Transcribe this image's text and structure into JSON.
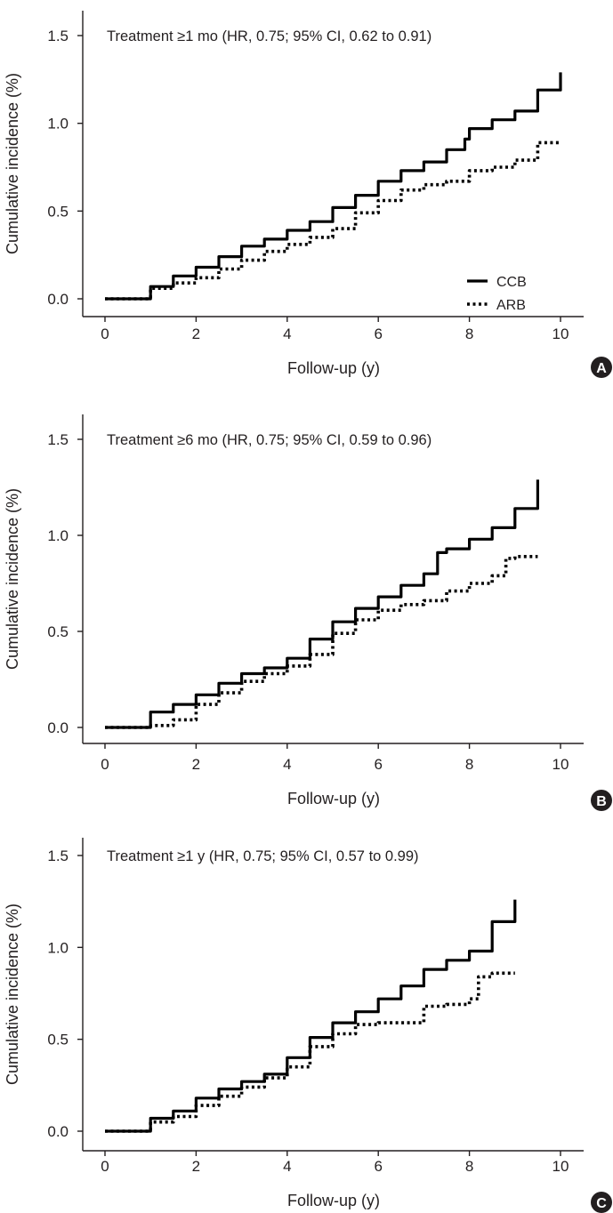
{
  "chart_data": [
    {
      "type": "line",
      "panel_label": "A",
      "annotation": "Treatment ≥1 mo (HR, 0.75; 95% CI, 0.62 to 0.91)",
      "xlabel": "Follow-up (y)",
      "ylabel": "Cumulative incidence (%)",
      "xlim": [
        0,
        10
      ],
      "ylim": [
        0,
        1.5
      ],
      "x_ticks": [
        "0",
        "2",
        "4",
        "6",
        "8",
        "10"
      ],
      "y_ticks": [
        "0.0",
        "0.5",
        "1.0",
        "1.5"
      ],
      "grid": false,
      "legend": {
        "position": "right",
        "entries": [
          "CCB",
          "ARB"
        ]
      },
      "series": [
        {
          "name": "CCB",
          "style": "solid",
          "x": [
            0,
            0.55,
            1.0,
            1.5,
            2.0,
            2.5,
            3.0,
            3.5,
            4.0,
            4.5,
            5.0,
            5.5,
            6.0,
            6.5,
            7.0,
            7.5,
            7.9,
            8.0,
            8.5,
            9.0,
            9.5,
            10.0
          ],
          "y": [
            0,
            0,
            0.07,
            0.13,
            0.18,
            0.24,
            0.3,
            0.34,
            0.39,
            0.44,
            0.52,
            0.59,
            0.67,
            0.73,
            0.78,
            0.85,
            0.91,
            0.97,
            1.02,
            1.07,
            1.19,
            1.29
          ]
        },
        {
          "name": "ARB",
          "style": "dotted",
          "x": [
            0,
            0.55,
            1.0,
            1.5,
            2.0,
            2.5,
            3.0,
            3.5,
            4.0,
            4.5,
            5.0,
            5.5,
            6.0,
            6.5,
            7.0,
            7.5,
            8.0,
            8.5,
            9.0,
            9.5,
            10.0
          ],
          "y": [
            0,
            0,
            0.06,
            0.09,
            0.12,
            0.17,
            0.22,
            0.27,
            0.31,
            0.35,
            0.4,
            0.49,
            0.56,
            0.62,
            0.65,
            0.67,
            0.73,
            0.75,
            0.79,
            0.89,
            0.89
          ]
        }
      ]
    },
    {
      "type": "line",
      "panel_label": "B",
      "annotation": "Treatment ≥6 mo (HR, 0.75; 95% CI, 0.59 to 0.96)",
      "xlabel": "Follow-up (y)",
      "ylabel": "Cumulative incidence (%)",
      "xlim": [
        0,
        10
      ],
      "ylim": [
        0,
        1.5
      ],
      "x_ticks": [
        "0",
        "2",
        "4",
        "6",
        "8",
        "10"
      ],
      "y_ticks": [
        "0.0",
        "0.5",
        "1.0",
        "1.5"
      ],
      "grid": false,
      "series": [
        {
          "name": "CCB",
          "style": "solid",
          "x": [
            0,
            0.55,
            1.0,
            1.5,
            2.0,
            2.5,
            3.0,
            3.5,
            4.0,
            4.5,
            5.0,
            5.5,
            6.0,
            6.5,
            7.0,
            7.3,
            7.5,
            8.0,
            8.5,
            9.0,
            9.5
          ],
          "y": [
            0,
            0,
            0.08,
            0.12,
            0.17,
            0.23,
            0.28,
            0.31,
            0.36,
            0.46,
            0.55,
            0.62,
            0.68,
            0.74,
            0.8,
            0.91,
            0.93,
            0.98,
            1.04,
            1.14,
            1.29
          ]
        },
        {
          "name": "ARB",
          "style": "dotted",
          "x": [
            0,
            0.55,
            1.0,
            1.5,
            2.0,
            2.5,
            3.0,
            3.5,
            4.0,
            4.5,
            5.0,
            5.5,
            6.0,
            6.5,
            7.0,
            7.5,
            8.0,
            8.5,
            8.8,
            9.0,
            9.5
          ],
          "y": [
            0,
            0,
            0.01,
            0.04,
            0.12,
            0.18,
            0.24,
            0.28,
            0.32,
            0.38,
            0.49,
            0.56,
            0.61,
            0.64,
            0.66,
            0.71,
            0.75,
            0.79,
            0.88,
            0.89,
            0.89
          ]
        }
      ]
    },
    {
      "type": "line",
      "panel_label": "C",
      "annotation": "Treatment ≥1 y (HR, 0.75; 95% CI, 0.57 to 0.99)",
      "xlabel": "Follow-up (y)",
      "ylabel": "Cumulative incidence (%)",
      "xlim": [
        0,
        10
      ],
      "ylim": [
        0,
        1.5
      ],
      "x_ticks": [
        "0",
        "2",
        "4",
        "6",
        "8",
        "10"
      ],
      "y_ticks": [
        "0.0",
        "0.5",
        "1.0",
        "1.5"
      ],
      "grid": false,
      "series": [
        {
          "name": "CCB",
          "style": "solid",
          "x": [
            0,
            0.55,
            1.0,
            1.5,
            2.0,
            2.5,
            3.0,
            3.5,
            4.0,
            4.5,
            5.0,
            5.5,
            6.0,
            6.5,
            7.0,
            7.5,
            8.0,
            8.5,
            9.0
          ],
          "y": [
            0,
            0,
            0.07,
            0.11,
            0.18,
            0.23,
            0.27,
            0.31,
            0.4,
            0.51,
            0.59,
            0.65,
            0.72,
            0.79,
            0.88,
            0.93,
            0.98,
            1.14,
            1.26
          ]
        },
        {
          "name": "ARB",
          "style": "dotted",
          "x": [
            0,
            0.55,
            1.0,
            1.5,
            2.0,
            2.5,
            3.0,
            3.5,
            4.0,
            4.5,
            5.0,
            5.5,
            6.0,
            6.5,
            7.0,
            7.5,
            8.0,
            8.2,
            8.5,
            9.0
          ],
          "y": [
            0,
            0,
            0.05,
            0.08,
            0.14,
            0.19,
            0.24,
            0.29,
            0.35,
            0.46,
            0.53,
            0.58,
            0.59,
            0.59,
            0.68,
            0.69,
            0.72,
            0.84,
            0.86,
            0.86
          ]
        }
      ]
    }
  ]
}
